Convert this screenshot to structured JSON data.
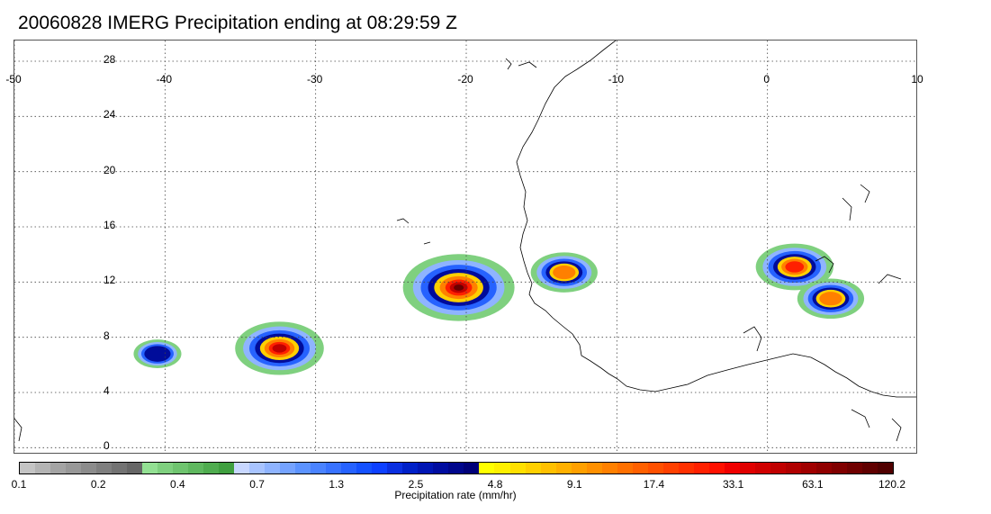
{
  "title": "20060828 IMERG Precipitation ending at 08:29:59 Z",
  "map": {
    "lon_ticks": [
      "-50",
      "-40",
      "-30",
      "-20",
      "-10",
      "0",
      "10"
    ],
    "lat_ticks": [
      "28",
      "24",
      "20",
      "16",
      "12",
      "8",
      "4",
      "0"
    ],
    "lon_range": [
      -50,
      10
    ],
    "lat_range": [
      -0.5,
      29.5
    ],
    "gridlines": "dotted",
    "coastline_color": "#000000"
  },
  "precip_cells": [
    {
      "lon": -20.5,
      "lat": 11.6,
      "peak_mm_hr": 120.2
    },
    {
      "lon": -32.4,
      "lat": 7.2,
      "peak_mm_hr": 33.1
    },
    {
      "lon": 1.8,
      "lat": 13.1,
      "peak_mm_hr": 17.4
    },
    {
      "lon": 4.2,
      "lat": 10.8,
      "peak_mm_hr": 9.1
    },
    {
      "lon": -13.5,
      "lat": 12.7,
      "peak_mm_hr": 9.1
    },
    {
      "lon": -40.5,
      "lat": 6.8,
      "peak_mm_hr": 2.5
    }
  ],
  "colorbar": {
    "colors": [
      "#c4c4c4",
      "#b4b4b4",
      "#a4a4a4",
      "#989898",
      "#8c8c8c",
      "#7f7f7f",
      "#737373",
      "#666666",
      "#93e093",
      "#7fd07f",
      "#6fc46f",
      "#5fb85f",
      "#4fac4f",
      "#3f9f3f",
      "#c8d7ff",
      "#a8c4ff",
      "#8fb4ff",
      "#75a3ff",
      "#5c93ff",
      "#4a83ff",
      "#3872ff",
      "#2662ff",
      "#1451ff",
      "#0d40ff",
      "#0a2fe0",
      "#0020c8",
      "#0015b4",
      "#000ca0",
      "#00068c",
      "#000078",
      "#ffff00",
      "#fff000",
      "#ffe000",
      "#ffd000",
      "#ffc000",
      "#ffb000",
      "#ffa000",
      "#ff9000",
      "#ff8000",
      "#ff7000",
      "#ff6000",
      "#ff5000",
      "#ff4000",
      "#ff3000",
      "#ff2000",
      "#ff1000",
      "#f00000",
      "#e00000",
      "#d00000",
      "#c00000",
      "#b00000",
      "#a00000",
      "#900000",
      "#800000",
      "#700000",
      "#600000",
      "#500000"
    ],
    "labels": [
      "0.1",
      "0.2",
      "0.4",
      "0.7",
      "1.3",
      "2.5",
      "4.8",
      "9.1",
      "17.4",
      "33.1",
      "63.1",
      "120.2"
    ],
    "unit_label": "Precipitation rate (mm/hr)"
  }
}
